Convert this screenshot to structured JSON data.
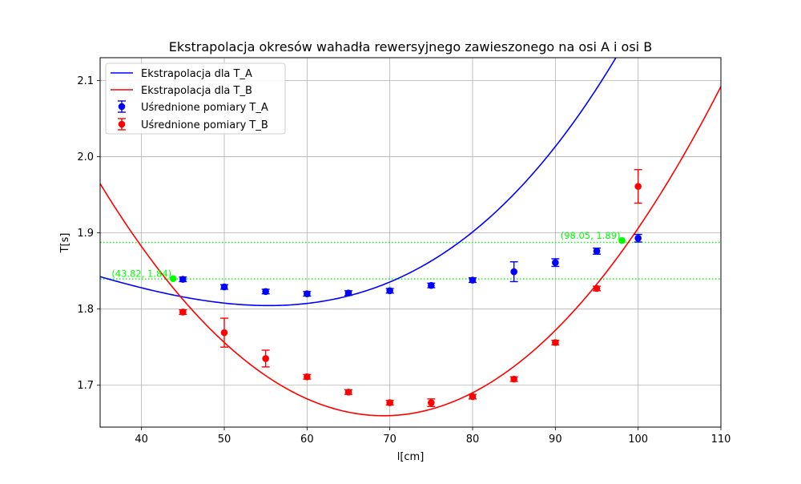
{
  "chart_data": {
    "type": "scatter",
    "title": "Ekstrapolacja okresów wahadła rewersyjnego zawieszonego na osi A i osi B",
    "xlabel": "l[cm]",
    "ylabel": "T[s]",
    "xlim": [
      35,
      110
    ],
    "ylim": [
      1.645,
      2.13
    ],
    "xticks": [
      40,
      50,
      60,
      70,
      80,
      90,
      100,
      110
    ],
    "yticks": [
      1.7,
      1.8,
      1.9,
      2.0,
      2.1
    ],
    "xtick_labels": [
      "40",
      "50",
      "60",
      "70",
      "80",
      "90",
      "100",
      "110"
    ],
    "ytick_labels": [
      "1.7",
      "1.8",
      "1.9",
      "2.0",
      "2.1"
    ],
    "grid": true,
    "legend_position": "upper-left",
    "fits": [
      {
        "name": "Ekstrapolacja dla T_A",
        "color": "#0000ff",
        "x_range": [
          35,
          110
        ],
        "poly_coeffs_descending": [
          1.4925e-06,
          -0.0001257,
          0.0002,
          1.9255
        ]
      },
      {
        "name": "Ekstrapolacja dla T_B",
        "color": "#ff0000",
        "x_range": [
          35,
          110
        ],
        "poly_coeffs_descending": [
          0.00026,
          -0.036,
          2.9061
        ]
      }
    ],
    "series": [
      {
        "name": "Uśrednione pomiary T_A",
        "color": "#0000ff",
        "x": [
          45,
          50,
          55,
          60,
          65,
          70,
          75,
          80,
          85,
          90,
          95,
          100
        ],
        "y": [
          1.839,
          1.829,
          1.823,
          1.82,
          1.821,
          1.824,
          1.831,
          1.838,
          1.849,
          1.861,
          1.876,
          1.893
        ],
        "yerr": [
          0.003,
          0.003,
          0.003,
          0.003,
          0.003,
          0.003,
          0.003,
          0.003,
          0.013,
          0.005,
          0.004,
          0.005
        ]
      },
      {
        "name": "Uśrednione pomiary T_B",
        "color": "#ff0000",
        "x": [
          45,
          50,
          55,
          60,
          65,
          70,
          75,
          80,
          85,
          90,
          95,
          100
        ],
        "y": [
          1.796,
          1.769,
          1.735,
          1.711,
          1.691,
          1.677,
          1.677,
          1.685,
          1.708,
          1.756,
          1.827,
          1.961
        ],
        "yerr": [
          0.003,
          0.019,
          0.011,
          0.003,
          0.003,
          0.003,
          0.005,
          0.003,
          0.003,
          0.003,
          0.003,
          0.022
        ]
      }
    ],
    "reference_lines": [
      {
        "y": 1.8395,
        "color": "#00ff00"
      },
      {
        "y": 1.8875,
        "color": "#00ff00"
      }
    ],
    "intersections": [
      {
        "x": 43.82,
        "y": 1.84,
        "label": "(43.82, 1.84)",
        "color": "#00ff00"
      },
      {
        "x": 98.05,
        "y": 1.89,
        "label": "(98.05, 1.89)",
        "color": "#00ff00"
      }
    ]
  }
}
